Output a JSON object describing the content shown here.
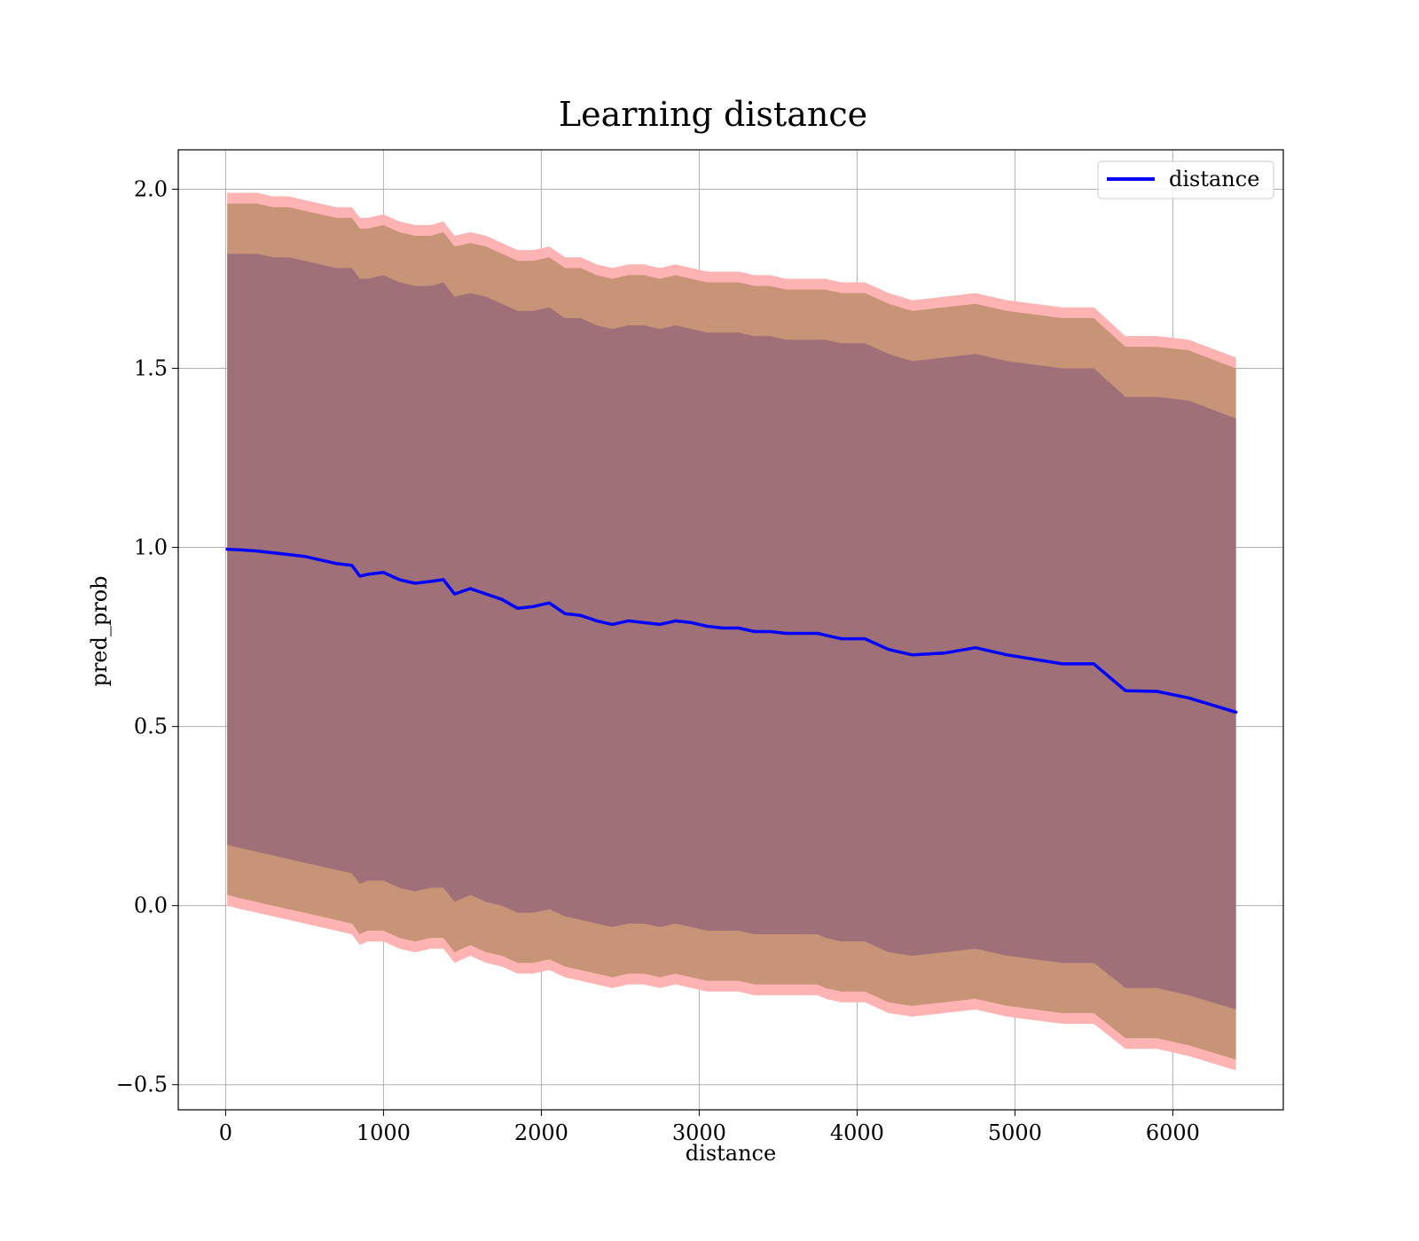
{
  "chart_data": {
    "type": "line",
    "title": "Learning distance",
    "xlabel": "distance",
    "ylabel": "pred_prob",
    "xlim": [
      -300,
      6700
    ],
    "ylim": [
      -0.57,
      2.11
    ],
    "xticks": [
      0,
      1000,
      2000,
      3000,
      4000,
      5000,
      6000
    ],
    "yticks": [
      -0.5,
      0.0,
      0.5,
      1.0,
      1.5,
      2.0
    ],
    "xtick_labels": [
      "0",
      "1000",
      "2000",
      "3000",
      "4000",
      "5000",
      "6000"
    ],
    "ytick_labels": [
      "−0.5",
      "0.0",
      "0.5",
      "1.0",
      "1.5",
      "2.0"
    ],
    "grid": true,
    "legend": {
      "position": "top-right",
      "entries": [
        "distance"
      ]
    },
    "colors": {
      "line": "#0000ff",
      "outer_band": "#ffb3b3",
      "middle_band": "#c89478",
      "inner_band": "#a07078",
      "grid": "#b0b0b0"
    },
    "x": [
      10,
      100,
      200,
      300,
      400,
      500,
      600,
      700,
      800,
      850,
      900,
      1000,
      1100,
      1200,
      1300,
      1380,
      1450,
      1550,
      1650,
      1750,
      1850,
      1950,
      2050,
      2150,
      2250,
      2350,
      2450,
      2550,
      2650,
      2750,
      2850,
      2950,
      3050,
      3150,
      3250,
      3350,
      3450,
      3550,
      3650,
      3750,
      3800,
      3900,
      4050,
      4200,
      4350,
      4550,
      4750,
      4950,
      5300,
      5500,
      5700,
      5900,
      6100,
      6400
    ],
    "series": [
      {
        "name": "distance",
        "values": [
          0.995,
          0.993,
          0.99,
          0.985,
          0.98,
          0.975,
          0.965,
          0.955,
          0.95,
          0.92,
          0.925,
          0.93,
          0.91,
          0.9,
          0.905,
          0.91,
          0.87,
          0.885,
          0.87,
          0.855,
          0.83,
          0.835,
          0.845,
          0.815,
          0.81,
          0.795,
          0.785,
          0.795,
          0.79,
          0.785,
          0.795,
          0.79,
          0.78,
          0.775,
          0.775,
          0.765,
          0.765,
          0.76,
          0.76,
          0.76,
          0.755,
          0.745,
          0.745,
          0.715,
          0.7,
          0.705,
          0.72,
          0.7,
          0.675,
          0.675,
          0.6,
          0.598,
          0.58,
          0.54
        ]
      }
    ],
    "bands": [
      {
        "lower": [
          0.0,
          -0.01,
          -0.02,
          -0.03,
          -0.04,
          -0.05,
          -0.06,
          -0.07,
          -0.08,
          -0.11,
          -0.1,
          -0.1,
          -0.12,
          -0.13,
          -0.12,
          -0.12,
          -0.16,
          -0.14,
          -0.16,
          -0.17,
          -0.19,
          -0.19,
          -0.18,
          -0.2,
          -0.21,
          -0.22,
          -0.23,
          -0.22,
          -0.22,
          -0.23,
          -0.22,
          -0.23,
          -0.24,
          -0.24,
          -0.24,
          -0.25,
          -0.25,
          -0.25,
          -0.25,
          -0.25,
          -0.26,
          -0.27,
          -0.27,
          -0.3,
          -0.31,
          -0.3,
          -0.29,
          -0.31,
          -0.33,
          -0.33,
          -0.4,
          -0.4,
          -0.42,
          -0.46
        ],
        "upper": [
          1.99,
          1.99,
          1.99,
          1.98,
          1.98,
          1.97,
          1.96,
          1.95,
          1.95,
          1.92,
          1.92,
          1.93,
          1.91,
          1.9,
          1.9,
          1.91,
          1.87,
          1.88,
          1.87,
          1.85,
          1.83,
          1.83,
          1.84,
          1.81,
          1.81,
          1.79,
          1.78,
          1.79,
          1.79,
          1.78,
          1.79,
          1.78,
          1.77,
          1.77,
          1.77,
          1.76,
          1.76,
          1.75,
          1.75,
          1.75,
          1.75,
          1.74,
          1.74,
          1.71,
          1.69,
          1.7,
          1.71,
          1.69,
          1.67,
          1.67,
          1.59,
          1.59,
          1.58,
          1.53
        ]
      },
      {
        "lower": [
          0.03,
          0.02,
          0.01,
          0.0,
          -0.01,
          -0.02,
          -0.03,
          -0.04,
          -0.05,
          -0.08,
          -0.07,
          -0.07,
          -0.09,
          -0.1,
          -0.09,
          -0.09,
          -0.13,
          -0.11,
          -0.13,
          -0.14,
          -0.16,
          -0.16,
          -0.15,
          -0.17,
          -0.18,
          -0.19,
          -0.2,
          -0.19,
          -0.19,
          -0.2,
          -0.19,
          -0.2,
          -0.21,
          -0.21,
          -0.21,
          -0.22,
          -0.22,
          -0.22,
          -0.22,
          -0.22,
          -0.23,
          -0.24,
          -0.24,
          -0.27,
          -0.28,
          -0.27,
          -0.26,
          -0.28,
          -0.3,
          -0.3,
          -0.37,
          -0.37,
          -0.39,
          -0.43
        ],
        "upper": [
          1.96,
          1.96,
          1.96,
          1.95,
          1.95,
          1.94,
          1.93,
          1.92,
          1.92,
          1.89,
          1.89,
          1.9,
          1.88,
          1.87,
          1.87,
          1.88,
          1.84,
          1.85,
          1.84,
          1.82,
          1.8,
          1.8,
          1.81,
          1.78,
          1.78,
          1.76,
          1.75,
          1.76,
          1.76,
          1.75,
          1.76,
          1.75,
          1.74,
          1.74,
          1.74,
          1.73,
          1.73,
          1.72,
          1.72,
          1.72,
          1.72,
          1.71,
          1.71,
          1.68,
          1.66,
          1.67,
          1.68,
          1.66,
          1.64,
          1.64,
          1.56,
          1.56,
          1.55,
          1.5
        ]
      },
      {
        "lower": [
          0.17,
          0.16,
          0.15,
          0.14,
          0.13,
          0.12,
          0.11,
          0.1,
          0.09,
          0.06,
          0.07,
          0.07,
          0.05,
          0.04,
          0.05,
          0.05,
          0.01,
          0.03,
          0.01,
          0.0,
          -0.02,
          -0.02,
          -0.01,
          -0.03,
          -0.04,
          -0.05,
          -0.06,
          -0.05,
          -0.05,
          -0.06,
          -0.05,
          -0.06,
          -0.07,
          -0.07,
          -0.07,
          -0.08,
          -0.08,
          -0.08,
          -0.08,
          -0.08,
          -0.09,
          -0.1,
          -0.1,
          -0.13,
          -0.14,
          -0.13,
          -0.12,
          -0.14,
          -0.16,
          -0.16,
          -0.23,
          -0.23,
          -0.25,
          -0.29
        ],
        "upper": [
          1.82,
          1.82,
          1.82,
          1.81,
          1.81,
          1.8,
          1.79,
          1.78,
          1.78,
          1.75,
          1.75,
          1.76,
          1.74,
          1.73,
          1.73,
          1.74,
          1.7,
          1.71,
          1.7,
          1.68,
          1.66,
          1.66,
          1.67,
          1.64,
          1.64,
          1.62,
          1.61,
          1.62,
          1.62,
          1.61,
          1.62,
          1.61,
          1.6,
          1.6,
          1.6,
          1.59,
          1.59,
          1.58,
          1.58,
          1.58,
          1.58,
          1.57,
          1.57,
          1.54,
          1.52,
          1.53,
          1.54,
          1.52,
          1.5,
          1.5,
          1.42,
          1.42,
          1.41,
          1.36
        ]
      }
    ]
  }
}
